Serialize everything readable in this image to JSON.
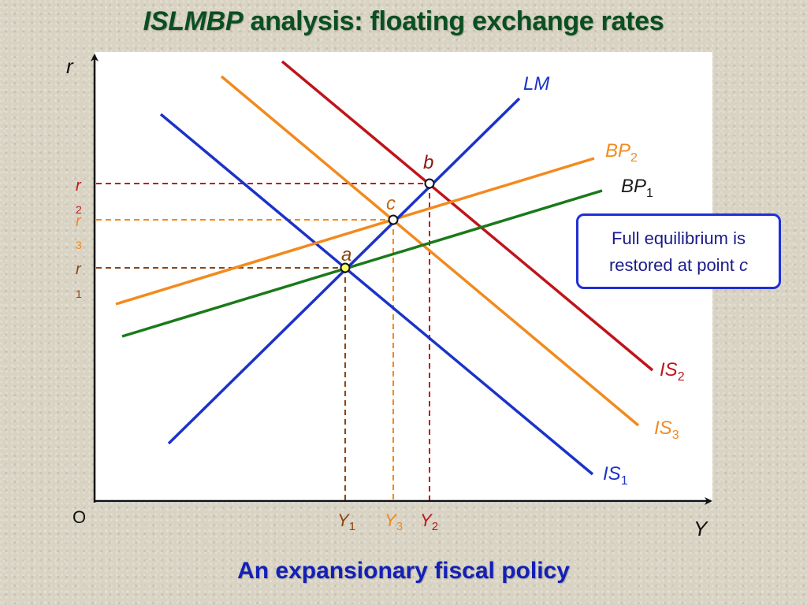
{
  "title": {
    "italic_part": "ISLMBP",
    "rest": " analysis: floating exchange rates"
  },
  "caption": "An expansionary fiscal policy",
  "axes": {
    "y_label": "r",
    "x_label": "Y",
    "origin_label": "O"
  },
  "curves": {
    "lm": {
      "label": "LM",
      "color": "#1b33c8"
    },
    "is1": {
      "label": "IS",
      "sub": "1",
      "color": "#1b33c8"
    },
    "is2": {
      "label": "IS",
      "sub": "2",
      "color": "#c0141a"
    },
    "is3": {
      "label": "IS",
      "sub": "3",
      "color": "#f28a1e"
    },
    "bp1": {
      "label": "BP",
      "sub": "1",
      "color": "#1a7a1a"
    },
    "bp2": {
      "label": "BP",
      "sub": "2",
      "color": "#f28a1e"
    }
  },
  "points": {
    "a": "a",
    "b": "b",
    "c": "c"
  },
  "y_ticks": {
    "r1": {
      "label": "r",
      "sub": "1"
    },
    "r2": {
      "label": "r",
      "sub": "2"
    },
    "r3": {
      "label": "r",
      "sub": "3"
    }
  },
  "x_ticks": {
    "y1": {
      "label": "Y",
      "sub": "1"
    },
    "y2": {
      "label": "Y",
      "sub": "2"
    },
    "y3": {
      "label": "Y",
      "sub": "3"
    }
  },
  "note": {
    "line1": "Full equilibrium is",
    "line2_prefix": "restored at point ",
    "line2_point": "c"
  }
}
